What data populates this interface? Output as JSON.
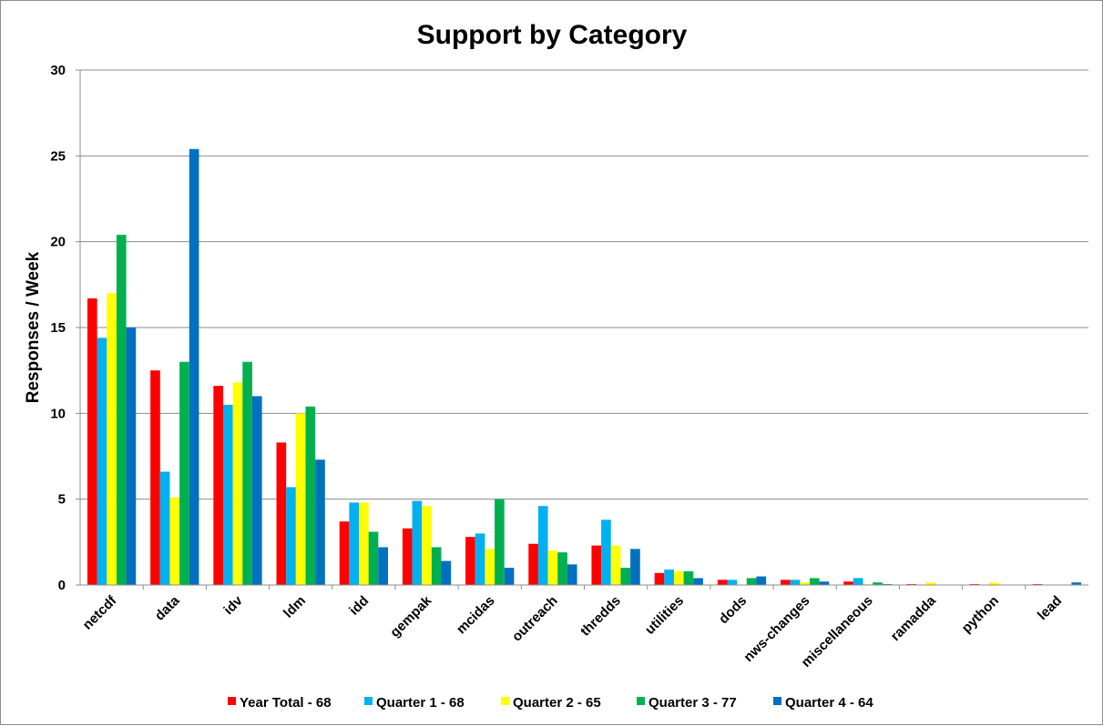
{
  "chart_data": {
    "type": "bar",
    "title": "Support by Category",
    "xlabel": "",
    "ylabel": "Responses / Week",
    "ylim": [
      0,
      30
    ],
    "yticks": [
      "0",
      "5",
      "10",
      "15",
      "20",
      "25",
      "30"
    ],
    "grid": true,
    "legend_position": "bottom",
    "categories": [
      "netcdf",
      "data",
      "idv",
      "ldm",
      "idd",
      "gempak",
      "mcidas",
      "outreach",
      "thredds",
      "utilities",
      "dods",
      "nws-changes",
      "miscellaneous",
      "ramadda",
      "python",
      "lead"
    ],
    "series": [
      {
        "name": "Year Total - 68",
        "color": "#ff0000",
        "values": [
          16.7,
          12.5,
          11.6,
          8.3,
          3.7,
          3.3,
          2.8,
          2.4,
          2.3,
          0.7,
          0.3,
          0.3,
          0.2,
          0.05,
          0.05,
          0.05
        ]
      },
      {
        "name": "Quarter 1 - 68",
        "color": "#00b0f0",
        "values": [
          14.4,
          6.6,
          10.5,
          5.7,
          4.8,
          4.9,
          3.0,
          4.6,
          3.8,
          0.9,
          0.3,
          0.3,
          0.4,
          0.0,
          0.0,
          0.0
        ]
      },
      {
        "name": "Quarter 2 - 65",
        "color": "#ffff00",
        "values": [
          17.0,
          5.1,
          11.8,
          10.0,
          4.8,
          4.6,
          2.1,
          2.0,
          2.3,
          0.8,
          0.0,
          0.15,
          0.05,
          0.15,
          0.15,
          0.0
        ]
      },
      {
        "name": "Quarter 3 - 77",
        "color": "#00b050",
        "values": [
          20.4,
          13.0,
          13.0,
          10.4,
          3.1,
          2.2,
          5.0,
          1.9,
          1.0,
          0.8,
          0.4,
          0.4,
          0.15,
          0.0,
          0.0,
          0.0
        ]
      },
      {
        "name": "Quarter 4 - 64",
        "color": "#0070c0",
        "values": [
          15.0,
          25.4,
          11.0,
          7.3,
          2.2,
          1.4,
          1.0,
          1.2,
          2.1,
          0.4,
          0.5,
          0.2,
          0.05,
          0.0,
          0.0,
          0.15
        ]
      }
    ]
  }
}
